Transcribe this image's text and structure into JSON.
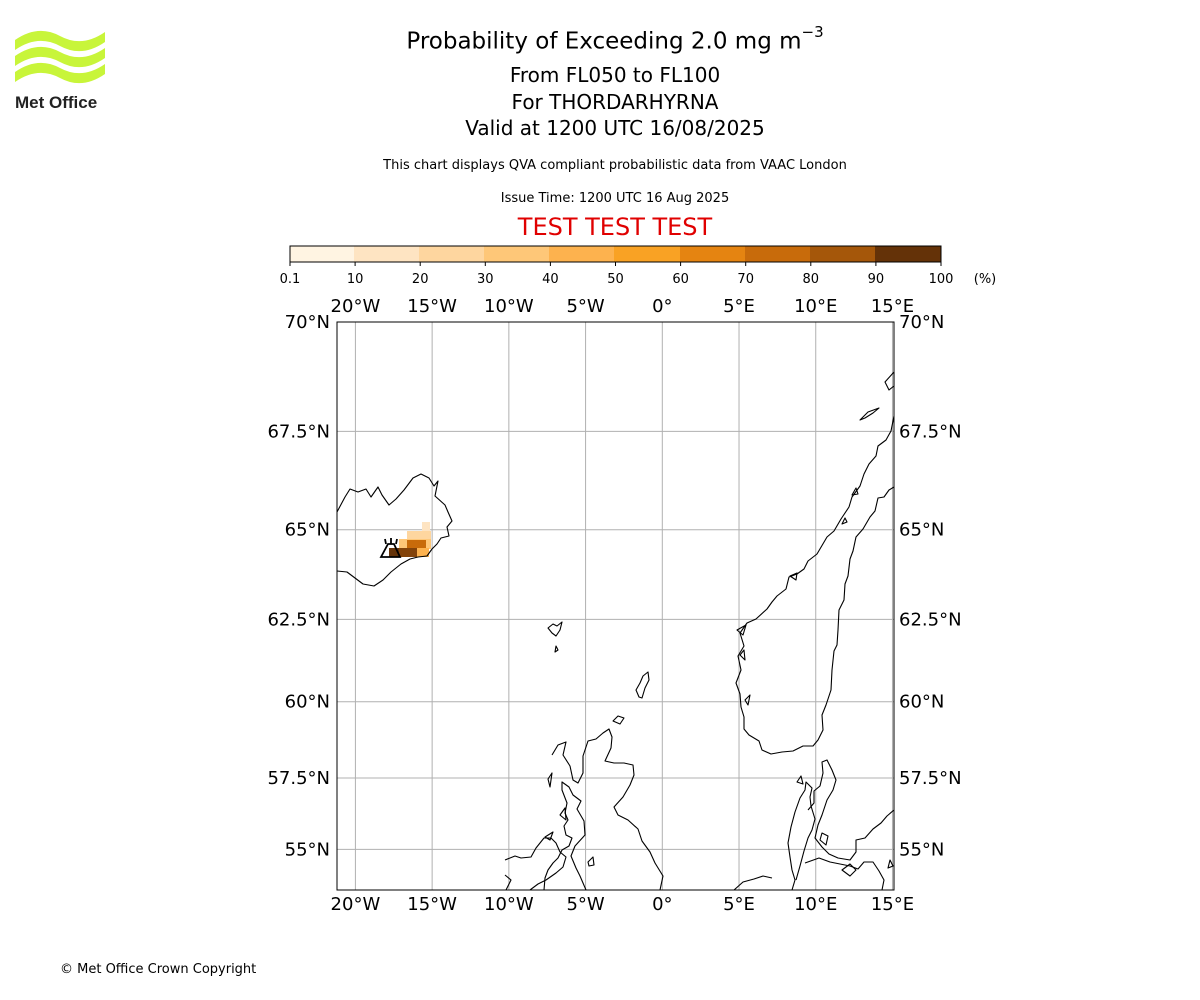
{
  "logo": {
    "brand_text": "Met Office",
    "color": "#c8f53a"
  },
  "title": {
    "main_prefix": "Probability of Exceeding 2.0 mg m",
    "main_exponent": "−3",
    "flight_levels": "From FL050 to FL100",
    "volcano": "For THORDARHYRNA",
    "valid": "Valid at 1200 UTC 16/08/2025"
  },
  "disclaimer": "This chart displays QVA compliant probabilistic data from VAAC London",
  "issue_time": "Issue Time: 1200 UTC 16 Aug 2025",
  "test_banner": "TEST TEST TEST",
  "test_color": "#e00000",
  "colorbar": {
    "ticks": [
      "0.1",
      "10",
      "20",
      "30",
      "40",
      "50",
      "60",
      "70",
      "80",
      "90",
      "100"
    ],
    "unit": "(%)",
    "colors": [
      "#fff4e2",
      "#fee4c2",
      "#fed69f",
      "#fec778",
      "#fdb24e",
      "#f9a224",
      "#e58411",
      "#c86b0b",
      "#a5570a",
      "#83430a",
      "#643208"
    ]
  },
  "map": {
    "lon_labels": [
      "20°W",
      "15°W",
      "10°W",
      "5°W",
      "0°",
      "5°E",
      "10°E",
      "15°E"
    ],
    "lat_labels": [
      "70°N",
      "67.5°N",
      "65°N",
      "62.5°N",
      "60°N",
      "57.5°N",
      "55°N"
    ],
    "lon_range": [
      -21.2,
      15.1
    ],
    "lat_range": [
      53.5,
      70
    ],
    "volcano_marker": {
      "name": "volcano-symbol",
      "lon": -17.7,
      "lat": 64.4
    }
  },
  "copyright": "© Met Office Crown Copyright"
}
